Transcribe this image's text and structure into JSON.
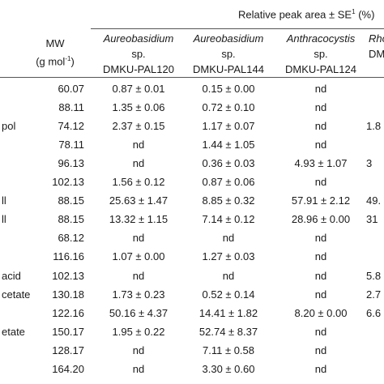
{
  "header": {
    "relative_peak_area_label": "Relative peak area ± SE",
    "relative_peak_area_sup": "1",
    "relative_peak_area_unit": "(%)",
    "mw_label": "MW",
    "mw_unit_prefix": "(g mol",
    "mw_unit_sup": "-1",
    "mw_unit_suffix": ")",
    "columns": [
      {
        "genus": "Aureobasidium",
        "sp": "sp.",
        "strain": "DMKU-PAL120"
      },
      {
        "genus": "Aureobasidium",
        "sp": "sp.",
        "strain": "DMKU-PAL144"
      },
      {
        "genus": "Anthracocystis",
        "sp": "sp.",
        "strain": "DMKU-PAL124"
      },
      {
        "genus": "Rho",
        "sp": "",
        "strain": "DMKU"
      }
    ]
  },
  "rows": [
    {
      "name": "",
      "mw": "60.07",
      "v1": "0.87 ± 0.01",
      "v2": "0.15 ± 0.00",
      "v3": "nd",
      "v4": ""
    },
    {
      "name": "",
      "mw": "88.11",
      "v1": "1.35 ± 0.06",
      "v2": "0.72 ± 0.10",
      "v3": "nd",
      "v4": ""
    },
    {
      "name": "pol",
      "mw": "74.12",
      "v1": "2.37 ± 0.15",
      "v2": "1.17 ± 0.07",
      "v3": "nd",
      "v4": "1.8"
    },
    {
      "name": "",
      "mw": "78.11",
      "v1": "nd",
      "v2": "1.44 ± 1.05",
      "v3": "nd",
      "v4": ""
    },
    {
      "name": "",
      "mw": "96.13",
      "v1": "nd",
      "v2": "0.36 ± 0.03",
      "v3": "4.93 ± 1.07",
      "v4": "3"
    },
    {
      "name": "",
      "mw": "102.13",
      "v1": "1.56 ± 0.12",
      "v2": "0.87 ± 0.06",
      "v3": "nd",
      "v4": ""
    },
    {
      "name": "ll",
      "mw": "88.15",
      "v1": "25.63 ± 1.47",
      "v2": "8.85 ± 0.32",
      "v3": "57.91 ± 2.12",
      "v4": "49."
    },
    {
      "name": "ll",
      "mw": "88.15",
      "v1": "13.32 ± 1.15",
      "v2": "7.14 ± 0.12",
      "v3": "28.96 ± 0.00",
      "v4": "31"
    },
    {
      "name": "",
      "mw": "68.12",
      "v1": "nd",
      "v2": "nd",
      "v3": "nd",
      "v4": ""
    },
    {
      "name": "",
      "mw": "116.16",
      "v1": "1.07 ± 0.00",
      "v2": "1.27 ± 0.03",
      "v3": "nd",
      "v4": ""
    },
    {
      "name": "acid",
      "mw": "102.13",
      "v1": "nd",
      "v2": "nd",
      "v3": "nd",
      "v4": "5.8"
    },
    {
      "name": "cetate",
      "mw": "130.18",
      "v1": "1.73 ± 0.23",
      "v2": "0.52 ± 0.14",
      "v3": "nd",
      "v4": "2.7"
    },
    {
      "name": "",
      "mw": "122.16",
      "v1": "50.16 ± 4.37",
      "v2": "14.41 ± 1.82",
      "v3": "8.20 ± 0.00",
      "v4": "6.6"
    },
    {
      "name": "etate",
      "mw": "150.17",
      "v1": "1.95 ± 0.22",
      "v2": "52.74 ± 8.37",
      "v3": "nd",
      "v4": ""
    },
    {
      "name": "",
      "mw": "128.17",
      "v1": "nd",
      "v2": "7.11 ± 0.58",
      "v3": "nd",
      "v4": ""
    },
    {
      "name": "",
      "mw": "164.20",
      "v1": "nd",
      "v2": "3.30 ± 0.60",
      "v3": "nd",
      "v4": ""
    }
  ]
}
